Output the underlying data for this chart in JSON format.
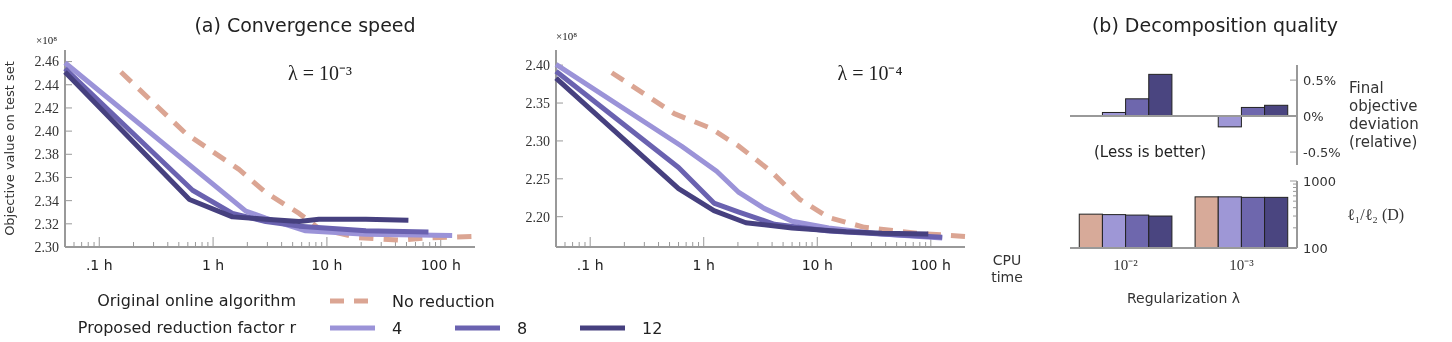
{
  "chart_data": [
    {
      "type": "line",
      "title": "(a) Convergence speed",
      "ylabel": "Objective value on test set",
      "log": "x",
      "legend": "bottom",
      "line_style": "solid",
      "annotations": [
        "×10⁸",
        "λ = 10⁻³",
        "Original online algorithm",
        "Proposed reduction factor r"
      ],
      "xlim": [
        0.05,
        200
      ],
      "xticks": [
        {
          "value": 0.1,
          "label": ".1 h"
        },
        {
          "value": 1,
          "label": "1 h"
        },
        {
          "value": 10,
          "label": "10 h"
        },
        {
          "value": 100,
          "label": "100 h"
        }
      ],
      "ylim": [
        2.3,
        2.47
      ],
      "yticks": [
        {
          "value": 2.3,
          "label": "2.30"
        },
        {
          "value": 2.32,
          "label": "2.32"
        },
        {
          "value": 2.34,
          "label": "2.34"
        },
        {
          "value": 2.36,
          "label": "2.36"
        },
        {
          "value": 2.38,
          "label": "2.38"
        },
        {
          "value": 2.4,
          "label": "2.40"
        },
        {
          "value": 2.42,
          "label": "2.42"
        },
        {
          "value": 2.44,
          "label": "2.44"
        },
        {
          "value": 2.46,
          "label": "2.46"
        }
      ],
      "series": [
        {
          "name": "No reduction",
          "color": "#dba593",
          "line_style": "dashed",
          "x": [
            0.155,
            0.575,
            1.0,
            1.69,
            2.9,
            5.7,
            8.5,
            19,
            43,
            83,
            186
          ],
          "values": [
            2.451,
            2.398,
            2.382,
            2.367,
            2.347,
            2.329,
            2.316,
            2.308,
            2.306,
            2.308,
            2.309
          ]
        },
        {
          "name": "4",
          "color": "#9b93d8",
          "x": [
            0.05,
            1.94,
            2.9,
            6.5,
            22,
            126
          ],
          "values": [
            2.459,
            2.331,
            2.325,
            2.314,
            2.311,
            2.31
          ]
        },
        {
          "name": "8",
          "color": "#6a62b0",
          "x": [
            0.05,
            0.66,
            1.48,
            2.9,
            5.7,
            22,
            78
          ],
          "values": [
            2.454,
            2.349,
            2.329,
            2.322,
            2.318,
            2.314,
            2.313
          ]
        },
        {
          "name": "12",
          "color": "#46407f",
          "x": [
            0.05,
            0.62,
            1.48,
            2.9,
            5.7,
            8.5,
            22,
            52
          ],
          "values": [
            2.451,
            2.341,
            2.326,
            2.324,
            2.322,
            2.324,
            2.324,
            2.323
          ]
        }
      ]
    },
    {
      "type": "line",
      "xlabel": "CPU time",
      "log": "x",
      "line_style": "solid",
      "annotations": [
        "×10⁸",
        "λ = 10⁻⁴"
      ],
      "xlim": [
        0.05,
        200
      ],
      "xticks": [
        {
          "value": 0.1,
          "label": ".1 h"
        },
        {
          "value": 1,
          "label": "1 h"
        },
        {
          "value": 10,
          "label": "10 h"
        },
        {
          "value": 100,
          "label": "100 h"
        }
      ],
      "ylim": [
        2.16,
        2.42
      ],
      "yticks": [
        {
          "value": 2.2,
          "label": "2.20"
        },
        {
          "value": 2.25,
          "label": "2.25"
        },
        {
          "value": 2.3,
          "label": "2.30"
        },
        {
          "value": 2.35,
          "label": "2.35"
        },
        {
          "value": 2.4,
          "label": "2.40"
        }
      ],
      "series": [
        {
          "color": "#dba593",
          "line_style": "dashed",
          "x": [
            0.155,
            0.55,
            1.14,
            2.04,
            3.9,
            7,
            12.6,
            26,
            77,
            200
          ],
          "values": [
            2.39,
            2.336,
            2.317,
            2.293,
            2.26,
            2.223,
            2.199,
            2.186,
            2.178,
            2.174
          ]
        },
        {
          "color": "#9b93d8",
          "x": [
            0.05,
            0.64,
            1.3,
            2.04,
            3.4,
            6,
            12.6,
            37,
            126
          ],
          "values": [
            2.401,
            2.293,
            2.26,
            2.232,
            2.211,
            2.194,
            2.185,
            2.177,
            2.172
          ]
        },
        {
          "color": "#6a62b0",
          "x": [
            0.05,
            0.6,
            1.23,
            2.04,
            4.2,
            12.6,
            37,
            126
          ],
          "values": [
            2.392,
            2.265,
            2.218,
            2.206,
            2.19,
            2.181,
            2.177,
            2.173
          ]
        },
        {
          "color": "#46407f",
          "x": [
            0.05,
            0.6,
            1.23,
            2.35,
            6,
            18,
            37,
            95
          ],
          "values": [
            2.383,
            2.237,
            2.208,
            2.192,
            2.185,
            2.18,
            2.178,
            2.177
          ]
        }
      ]
    },
    {
      "type": "bar",
      "title": "(b) Decomposition quality",
      "ylabel": "Final objective deviation (relative)",
      "annotations": [
        "(Less is better)"
      ],
      "categories": [
        null,
        null
      ],
      "ylim": [
        -0.68,
        0.71
      ],
      "yticks": [
        {
          "value": -0.5,
          "label": "-0.5%"
        },
        {
          "value": 0,
          "label": "0%"
        },
        {
          "value": 0.5,
          "label": "0.5%"
        }
      ],
      "series": [
        {
          "color": "#d7aa99",
          "values": [
            0,
            0
          ]
        },
        {
          "color": "#9e97d6",
          "values": [
            0.05,
            -0.15
          ]
        },
        {
          "color": "#6e67ad",
          "values": [
            0.24,
            0.12
          ]
        },
        {
          "color": "#4a4580",
          "values": [
            0.58,
            0.15
          ]
        }
      ]
    },
    {
      "type": "bar",
      "xlabel": "Regularization λ",
      "ylabel": "ℓ₁/ℓ₂ (D)",
      "log": true,
      "categories": [
        "10⁻²",
        "10⁻³"
      ],
      "ylim": [
        100,
        1000
      ],
      "yticks": [
        100,
        {
          "value": 200,
          "label": null
        },
        {
          "value": 300,
          "label": null
        },
        {
          "value": 400,
          "label": null
        },
        {
          "value": 500,
          "label": null
        },
        {
          "value": 600,
          "label": null
        },
        {
          "value": 700,
          "label": null
        },
        {
          "value": 800,
          "label": null
        },
        {
          "value": 900,
          "label": null
        },
        1000
      ],
      "series": [
        {
          "color": "#d7aa99",
          "values": [
            320,
            580
          ]
        },
        {
          "color": "#9e97d6",
          "values": [
            315,
            580
          ]
        },
        {
          "color": "#6e67ad",
          "values": [
            310,
            570
          ]
        },
        {
          "color": "#4a4580",
          "values": [
            300,
            570
          ]
        }
      ]
    }
  ]
}
